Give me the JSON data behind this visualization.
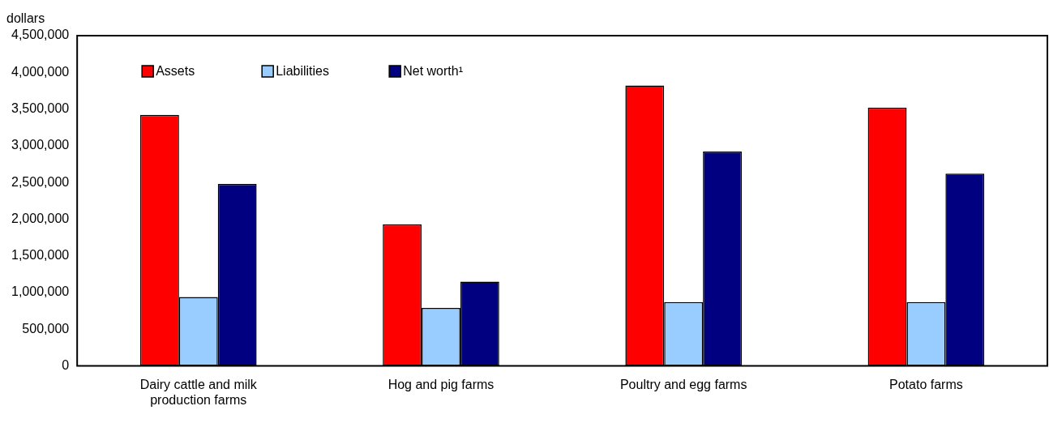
{
  "chart_data": {
    "type": "bar",
    "ylabel": "dollars",
    "categories": [
      "Dairy cattle and milk production farms",
      "Hog and pig farms",
      "Poultry and egg farms",
      "Potato farms"
    ],
    "series": [
      {
        "name": "Assets",
        "color": "#ff0000",
        "values": [
          3420000,
          1930000,
          3820000,
          3520000
        ]
      },
      {
        "name": "Liabilities",
        "color": "#99ccff",
        "values": [
          940000,
          790000,
          870000,
          870000
        ]
      },
      {
        "name": "Net worth¹",
        "color": "#000080",
        "values": [
          2480000,
          1150000,
          2920000,
          2620000
        ]
      }
    ],
    "ylim": [
      0,
      4500000
    ],
    "yticks": [
      0,
      {
        "value": 500000,
        "label": "500,000"
      },
      {
        "value": 1000000,
        "label": "1,000,000"
      },
      {
        "value": 1500000,
        "label": "1,500,000"
      },
      {
        "value": 2000000,
        "label": "2,000,000"
      },
      {
        "value": 2500000,
        "label": "2,500,000"
      },
      {
        "value": 3000000,
        "label": "3,000,000"
      },
      {
        "value": 3500000,
        "label": "3,500,000"
      },
      {
        "value": 4000000,
        "label": "4,000,000"
      },
      {
        "value": 4500000,
        "label": "4,500,000"
      }
    ],
    "grid": false,
    "legend": "top"
  }
}
